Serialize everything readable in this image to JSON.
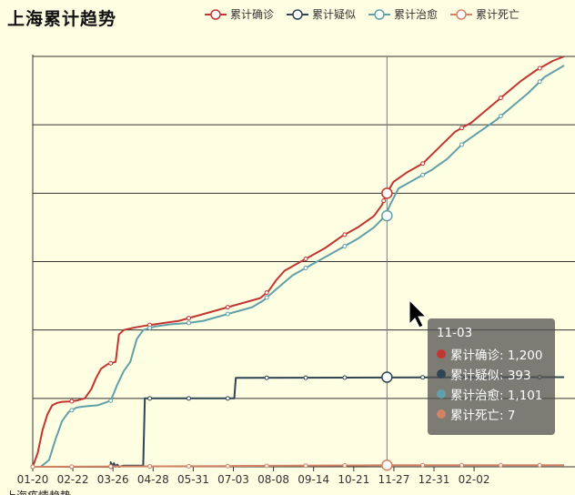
{
  "header": {
    "title": "上海累计趋势"
  },
  "legend": [
    {
      "label": "累计确诊",
      "color": "#c23531",
      "icon": "circle-line-icon"
    },
    {
      "label": "累计疑似",
      "color": "#2f4554",
      "icon": "circle-line-icon"
    },
    {
      "label": "累计治愈",
      "color": "#61a0a8",
      "icon": "circle-line-icon"
    },
    {
      "label": "累计死亡",
      "color": "#d48265",
      "icon": "circle-line-icon"
    }
  ],
  "tooltip": {
    "date": "11-03",
    "rows": [
      {
        "label": "累计确诊: 1,200",
        "color": "#c23531"
      },
      {
        "label": "累计疑似: 393",
        "color": "#2f4554"
      },
      {
        "label": "累计治愈: 1,101",
        "color": "#61a0a8"
      },
      {
        "label": "累计死亡: 7",
        "color": "#d48265"
      }
    ]
  },
  "chart_data": {
    "type": "line",
    "title": "上海累计趋势",
    "x_tick_labels": [
      "01-20",
      "02-22",
      "03-26",
      "04-28",
      "05-31",
      "07-03",
      "08-08",
      "09-14",
      "10-21",
      "11-27",
      "12-31",
      "02-02"
    ],
    "ylim": [
      0,
      1800
    ],
    "y_grid": [
      0,
      300,
      600,
      900,
      1200,
      1500,
      1800
    ],
    "grid": true,
    "legend_position": "top-right",
    "pointer_x": "11-03",
    "series": [
      {
        "name": "累计确诊",
        "color": "#c23531",
        "points": [
          [
            0,
            0
          ],
          [
            3,
            60
          ],
          [
            6,
            160
          ],
          [
            9,
            230
          ],
          [
            12,
            270
          ],
          [
            15,
            280
          ],
          [
            18,
            285
          ],
          [
            22,
            286
          ],
          [
            27,
            290
          ],
          [
            32,
            300
          ],
          [
            36,
            340
          ],
          [
            39,
            390
          ],
          [
            42,
            430
          ],
          [
            46,
            450
          ],
          [
            51,
            460
          ],
          [
            53,
            580
          ],
          [
            56,
            600
          ],
          [
            62,
            610
          ],
          [
            70,
            620
          ],
          [
            80,
            630
          ],
          [
            90,
            640
          ],
          [
            100,
            660
          ],
          [
            110,
            680
          ],
          [
            120,
            700
          ],
          [
            130,
            720
          ],
          [
            140,
            740
          ],
          [
            145,
            770
          ],
          [
            150,
            820
          ],
          [
            155,
            860
          ],
          [
            160,
            880
          ],
          [
            170,
            920
          ],
          [
            180,
            960
          ],
          [
            190,
            1010
          ],
          [
            200,
            1050
          ],
          [
            210,
            1100
          ],
          [
            215,
            1150
          ],
          [
            218,
            1200
          ],
          [
            222,
            1250
          ],
          [
            230,
            1290
          ],
          [
            240,
            1330
          ],
          [
            250,
            1400
          ],
          [
            260,
            1470
          ],
          [
            270,
            1510
          ],
          [
            280,
            1570
          ],
          [
            290,
            1630
          ],
          [
            300,
            1690
          ],
          [
            310,
            1740
          ],
          [
            320,
            1780
          ],
          [
            327,
            1800
          ]
        ]
      },
      {
        "name": "累计疑似",
        "color": "#2f4554",
        "points": [
          [
            0,
            0
          ],
          [
            48,
            0
          ],
          [
            48,
            20
          ],
          [
            49,
            5
          ],
          [
            50,
            15
          ],
          [
            51,
            0
          ],
          [
            52,
            10
          ],
          [
            53,
            0
          ],
          [
            56,
            5
          ],
          [
            68,
            5
          ],
          [
            69,
            300
          ],
          [
            124,
            300
          ],
          [
            125,
            390
          ],
          [
            300,
            393
          ],
          [
            327,
            393
          ]
        ]
      },
      {
        "name": "累计治愈",
        "color": "#61a0a8",
        "points": [
          [
            0,
            0
          ],
          [
            5,
            0
          ],
          [
            10,
            30
          ],
          [
            14,
            120
          ],
          [
            18,
            200
          ],
          [
            22,
            240
          ],
          [
            27,
            260
          ],
          [
            32,
            265
          ],
          [
            40,
            270
          ],
          [
            48,
            290
          ],
          [
            52,
            360
          ],
          [
            56,
            420
          ],
          [
            60,
            460
          ],
          [
            64,
            560
          ],
          [
            68,
            600
          ],
          [
            75,
            615
          ],
          [
            85,
            625
          ],
          [
            95,
            630
          ],
          [
            105,
            640
          ],
          [
            115,
            660
          ],
          [
            125,
            680
          ],
          [
            135,
            700
          ],
          [
            142,
            730
          ],
          [
            150,
            780
          ],
          [
            160,
            840
          ],
          [
            170,
            880
          ],
          [
            180,
            920
          ],
          [
            190,
            960
          ],
          [
            200,
            1000
          ],
          [
            210,
            1050
          ],
          [
            217,
            1101
          ],
          [
            220,
            1150
          ],
          [
            225,
            1220
          ],
          [
            235,
            1260
          ],
          [
            245,
            1300
          ],
          [
            255,
            1350
          ],
          [
            265,
            1420
          ],
          [
            275,
            1470
          ],
          [
            285,
            1520
          ],
          [
            295,
            1580
          ],
          [
            305,
            1640
          ],
          [
            315,
            1710
          ],
          [
            327,
            1760
          ]
        ]
      },
      {
        "name": "累计死亡",
        "color": "#d48265",
        "points": [
          [
            0,
            0
          ],
          [
            40,
            1
          ],
          [
            80,
            2
          ],
          [
            120,
            3
          ],
          [
            160,
            5
          ],
          [
            200,
            6
          ],
          [
            218,
            7
          ],
          [
            260,
            7
          ],
          [
            327,
            7
          ]
        ]
      }
    ]
  },
  "footer": {
    "partial_text": "上海疫情趋势"
  }
}
